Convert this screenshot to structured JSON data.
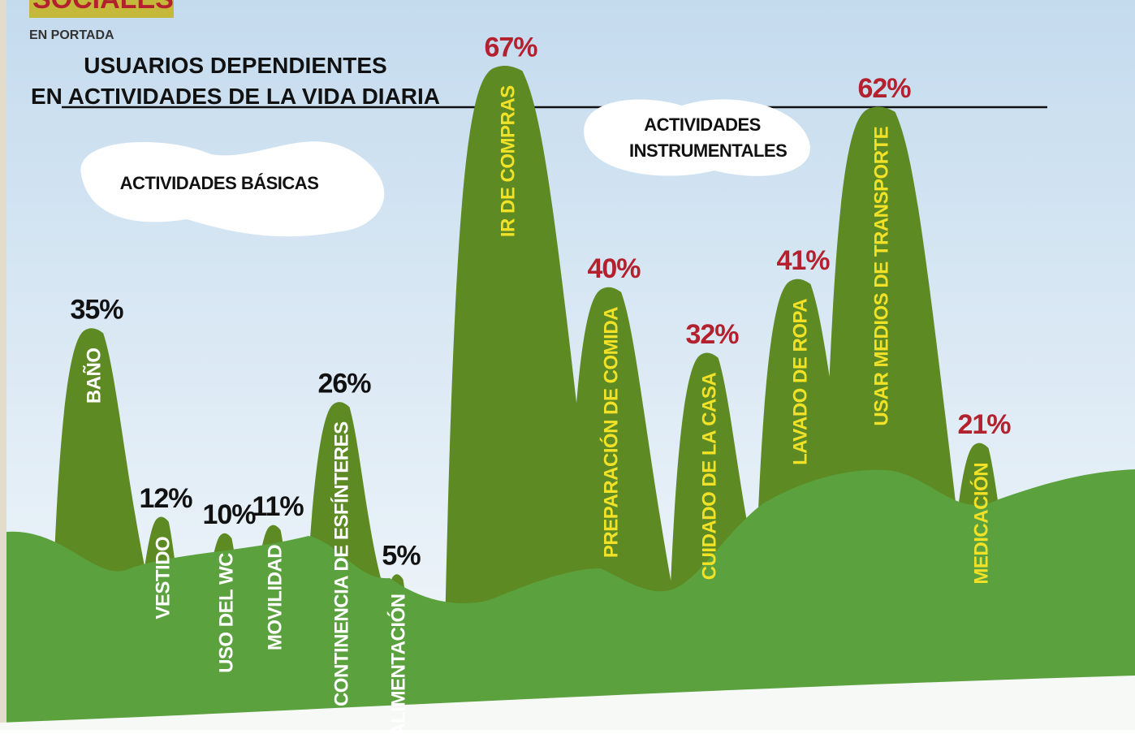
{
  "header": {
    "section": "SOCIALES",
    "subsection": "EN PORTADA"
  },
  "chart_data": {
    "type": "peaks",
    "title": "USUARIOS DEPENDIENTES",
    "subtitle": "EN ACTIVIDADES DE LA VIDA DIARIA",
    "categories": [
      "BAÑO",
      "VESTIDO",
      "USO DEL WC",
      "MOVILIDAD",
      "CONTINENCIA DE ESFÍNTERES",
      "ALIMENTACIÓN",
      "IR DE COMPRAS",
      "PREPARACIÓN DE COMIDA",
      "CUIDADO DE LA CASA",
      "LAVADO DE ROPA",
      "USAR MEDIOS DE TRANSPORTE",
      "MEDICACIÓN"
    ],
    "series": [
      {
        "name": "ACTIVIDADES BÁSICAS",
        "color": "#5e8a24",
        "label_color": "#111111",
        "category_color": "#ffffff",
        "values": [
          35,
          12,
          10,
          11,
          26,
          5,
          null,
          null,
          null,
          null,
          null,
          null
        ],
        "value_labels": [
          "35%",
          "12%",
          "10%",
          "11%",
          "26%",
          "5%",
          null,
          null,
          null,
          null,
          null,
          null
        ]
      },
      {
        "name": "ACTIVIDADES INSTRUMENTALES",
        "color": "#5e8a24",
        "label_color": "#b3212e",
        "category_color": "#f2e227",
        "values": [
          null,
          null,
          null,
          null,
          null,
          null,
          67,
          40,
          32,
          41,
          62,
          21
        ],
        "value_labels": [
          null,
          null,
          null,
          null,
          null,
          null,
          "67%",
          "40%",
          "32%",
          "41%",
          "62%",
          "21%"
        ]
      }
    ]
  }
}
